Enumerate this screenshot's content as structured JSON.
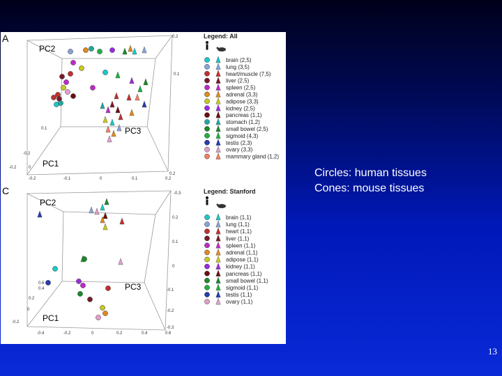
{
  "captions": {
    "circles": "Circles: human tissues",
    "cones": "Cones: mouse tissues"
  },
  "slide_number": "13",
  "colors": {
    "brain": "#19c8c8",
    "lung": "#8aa3d6",
    "heart": "#c03030",
    "liver": "#7a1a2a",
    "spleen": "#c02ac8",
    "adrenal": "#e08a20",
    "adipose": "#c8c820",
    "kidney": "#9a2ae0",
    "pancreas": "#6b1010",
    "stomach": "#20a8a0",
    "small_bowel": "#1a8a2a",
    "sigmoid": "#20b040",
    "testis": "#2a3ab0",
    "ovary": "#e0a0c8",
    "mammary": "#f08060"
  },
  "panel_a": {
    "letter": "A",
    "legend_title": "Legend: All",
    "axis_pc1": "PC1",
    "axis_pc2": "PC2",
    "axis_pc3": "PC3",
    "ticks": [
      "-0.2",
      "-0.1",
      "0",
      "0.1",
      "0.2",
      "-0.2",
      "0",
      "0.1",
      "0.2",
      "0.1",
      "-0.2",
      "0.2"
    ],
    "legend": [
      {
        "label": "brain (2,5)",
        "color": "#19c8c8"
      },
      {
        "label": "lung (3,5)",
        "color": "#8aa3d6"
      },
      {
        "label": "heart/muscle (7,5)",
        "color": "#c03030"
      },
      {
        "label": "liver (2,5)",
        "color": "#7a1a2a"
      },
      {
        "label": "spleen (2,5)",
        "color": "#c02ac8"
      },
      {
        "label": "adrenal (3,3)",
        "color": "#e08a20"
      },
      {
        "label": "adipose (3,3)",
        "color": "#c8c820"
      },
      {
        "label": "kidney (2,5)",
        "color": "#9a2ae0"
      },
      {
        "label": "pancreas (1,1)",
        "color": "#6b1010"
      },
      {
        "label": "stomach (1,2)",
        "color": "#20a8a0"
      },
      {
        "label": "small bowel (2,5)",
        "color": "#1a8a2a"
      },
      {
        "label": "sigmoid (4,3)",
        "color": "#20b040"
      },
      {
        "label": "testis (2,3)",
        "color": "#2a3ab0"
      },
      {
        "label": "ovary (3,3)",
        "color": "#e0a0c8"
      },
      {
        "label": "mammary gland (1,2)",
        "color": "#f08060"
      }
    ]
  },
  "panel_c": {
    "letter": "C",
    "legend_title": "Legend: Stanford",
    "axis_pc1": "PC1",
    "axis_pc2": "PC2",
    "axis_pc3": "PC3",
    "ticks": [
      "-0.4",
      "-0.2",
      "0",
      "0.2",
      "0.4",
      "0.6",
      "-0.2",
      "0",
      "0.2",
      "0.4",
      "0.6",
      "-0.3",
      "0.2",
      "0.1",
      "0",
      "-0.1",
      "-0.2",
      "-0.3"
    ],
    "legend": [
      {
        "label": "brain (1,1)",
        "color": "#19c8c8"
      },
      {
        "label": "lung (1,1)",
        "color": "#8aa3d6"
      },
      {
        "label": "heart (1,1)",
        "color": "#c03030"
      },
      {
        "label": "liver (1,1)",
        "color": "#7a1a2a"
      },
      {
        "label": "spleen (1,1)",
        "color": "#c02ac8"
      },
      {
        "label": "adrenal (1,1)",
        "color": "#e08a20"
      },
      {
        "label": "adipose (1,1)",
        "color": "#c8c820"
      },
      {
        "label": "kidney (1,1)",
        "color": "#9a2ae0"
      },
      {
        "label": "pancreas (1,1)",
        "color": "#6b1010"
      },
      {
        "label": "small bowel (1,1)",
        "color": "#1a8a2a"
      },
      {
        "label": "sigmoid (1,1)",
        "color": "#20b040"
      },
      {
        "label": "testis (1,1)",
        "color": "#2a3ab0"
      },
      {
        "label": "ovary (1,1)",
        "color": "#e0a0c8"
      }
    ]
  }
}
